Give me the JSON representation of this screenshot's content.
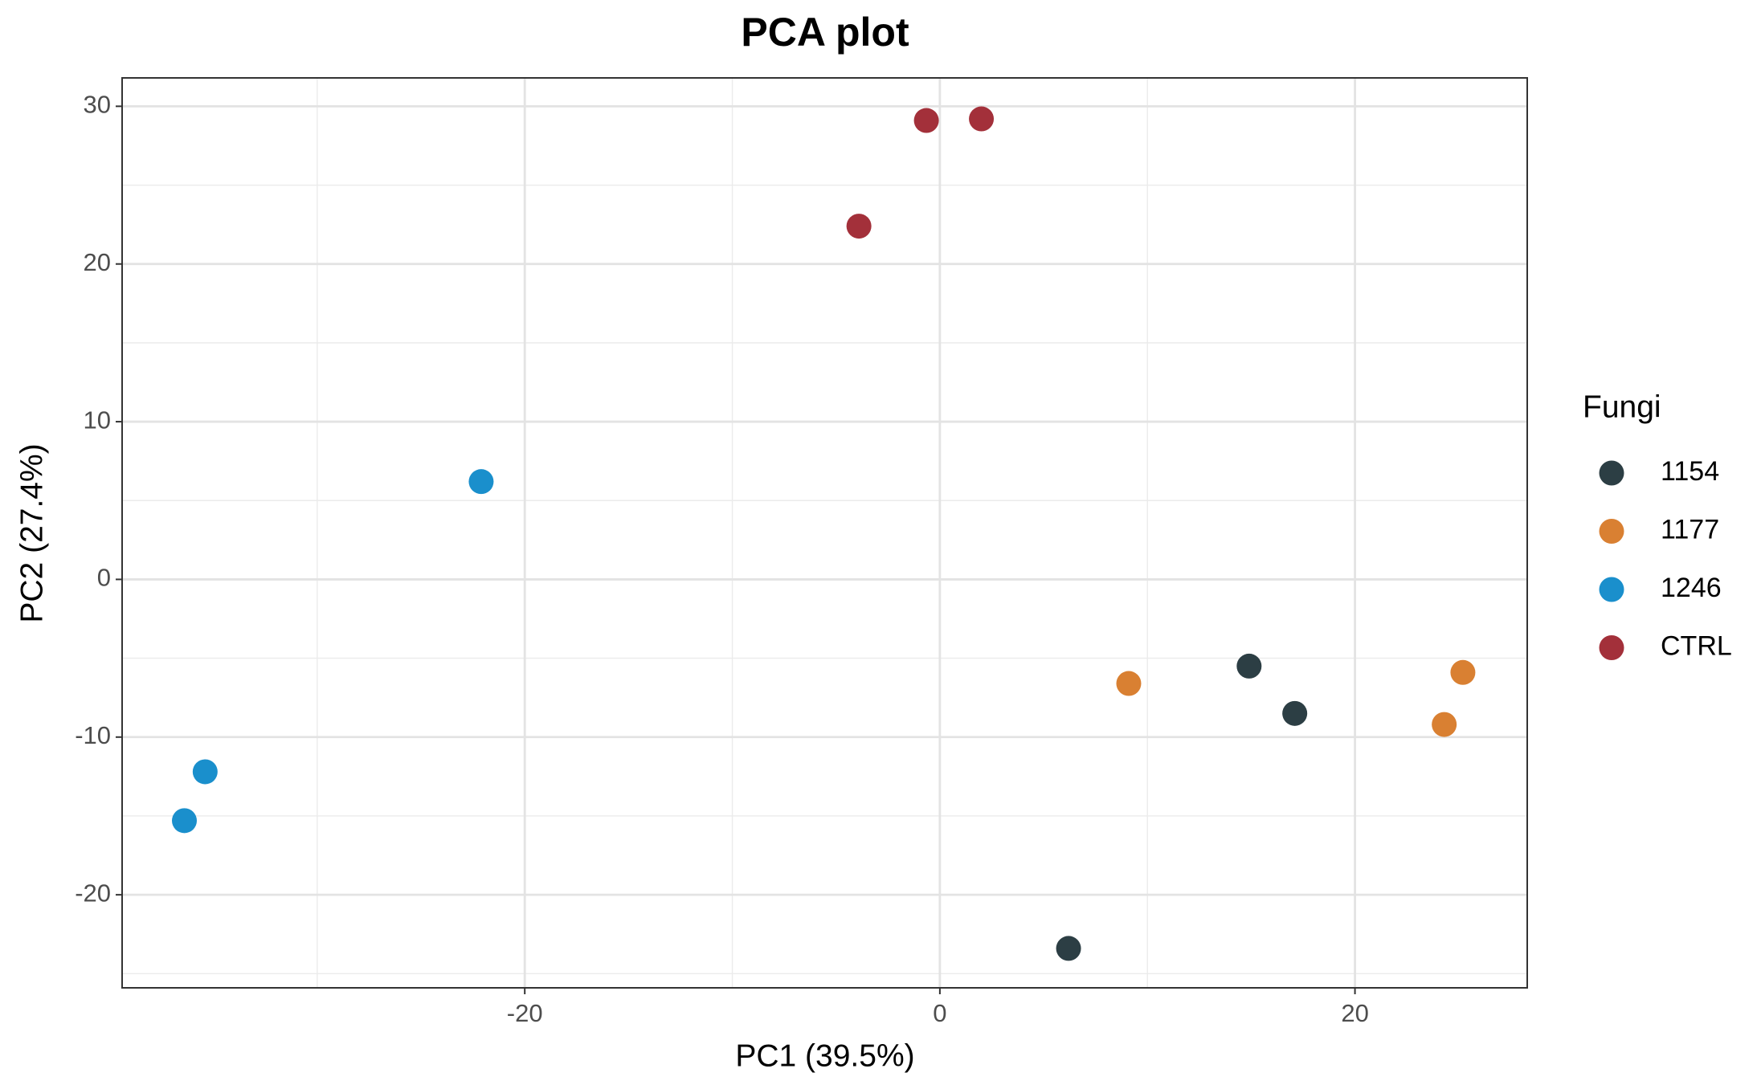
{
  "chart_data": {
    "type": "scatter",
    "title": "PCA plot",
    "x_label": "PC1 (39.5%)",
    "y_label": "PC2 (27.4%)",
    "legend_title": "Fungi",
    "legend_position": "right",
    "xlim": [
      -39.4,
      28.3
    ],
    "xticks": [
      -20,
      0,
      20
    ],
    "ylim": [
      -25.9,
      31.8
    ],
    "yticks": [
      -20,
      -10,
      0,
      10,
      20,
      30
    ],
    "grid": true,
    "series": [
      {
        "name": "1154",
        "color": "#2c3e44",
        "x": [
          14.9,
          17.1,
          6.2
        ],
        "values": [
          -5.5,
          -8.5,
          -23.4
        ]
      },
      {
        "name": "1177",
        "color": "#d98032",
        "x": [
          9.1,
          25.2,
          24.3
        ],
        "values": [
          -6.6,
          -5.9,
          -9.2
        ]
      },
      {
        "name": "1246",
        "color": "#1a8fcc",
        "x": [
          -22.1,
          -35.4,
          -36.4
        ],
        "values": [
          6.2,
          -12.2,
          -15.3
        ]
      },
      {
        "name": "CTRL",
        "color": "#a3303a",
        "x": [
          -0.65,
          2.0,
          -3.9
        ],
        "values": [
          29.1,
          29.2,
          22.4
        ]
      }
    ]
  }
}
